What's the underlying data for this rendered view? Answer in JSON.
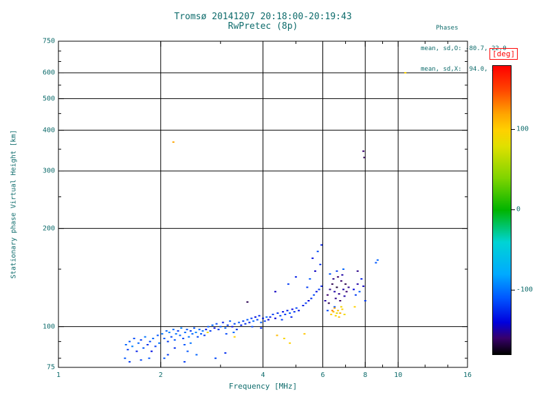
{
  "title": {
    "line1": "Tromsø 20141207 20:18:00-20:19:43",
    "line2": "RwPretec (8p)"
  },
  "stats": {
    "header": "Phases",
    "line_o": "mean, sd,O: -80.7, 22.0",
    "line_x": "mean, sd,X:  94.0, 24.9"
  },
  "colors": {
    "text": "#0d6b6b",
    "grid": "#000000",
    "deg_label": "#ff0000",
    "background": "#ffffff"
  },
  "chart_data": {
    "type": "scatter",
    "title": "Tromsø 20141207 20:18:00-20:19:43 / RwPretec (8p)",
    "xlabel": "Frequency [MHz]",
    "ylabel": "Stationary phase Virtual Height [km]",
    "x_scale": "log",
    "y_scale": "log",
    "xlim": [
      1,
      16
    ],
    "ylim": [
      75,
      750
    ],
    "x_ticks": [
      1,
      2,
      4,
      6,
      8,
      10,
      16
    ],
    "y_ticks": [
      75,
      100,
      200,
      300,
      400,
      500,
      600,
      750
    ],
    "x_minor_ticks": [
      3,
      5,
      7,
      9,
      12,
      14
    ],
    "y_minor_ticks": [
      80,
      90,
      150,
      250,
      350,
      450,
      550,
      650,
      700
    ],
    "x_gridlines": [
      2,
      4,
      6,
      8,
      10
    ],
    "y_gridlines": [
      100,
      200,
      300,
      400,
      500,
      600
    ],
    "grid": true,
    "colorbar": {
      "label": "[deg]",
      "ticks": [
        100,
        0,
        -100
      ],
      "range": [
        -180,
        180
      ],
      "stops": [
        [
          -180,
          "#000000"
        ],
        [
          -160,
          "#38006b"
        ],
        [
          -140,
          "#0000dd"
        ],
        [
          -110,
          "#0055ff"
        ],
        [
          -80,
          "#00aaff"
        ],
        [
          -40,
          "#00d4d4"
        ],
        [
          0,
          "#00b400"
        ],
        [
          40,
          "#7fd400"
        ],
        [
          80,
          "#e0e000"
        ],
        [
          100,
          "#ffd000"
        ],
        [
          120,
          "#ffa500"
        ],
        [
          150,
          "#ff4500"
        ],
        [
          180,
          "#ff0000"
        ]
      ]
    },
    "points_format": [
      "freq_MHz",
      "height_km",
      "phase_deg"
    ],
    "points": [
      [
        1.57,
        80,
        -110
      ],
      [
        1.58,
        88,
        -105
      ],
      [
        1.6,
        85,
        -120
      ],
      [
        1.62,
        78,
        -120
      ],
      [
        1.62,
        90,
        -110
      ],
      [
        1.65,
        87,
        -95
      ],
      [
        1.67,
        92,
        -115
      ],
      [
        1.7,
        84,
        -130
      ],
      [
        1.72,
        89,
        -105
      ],
      [
        1.75,
        91,
        -120
      ],
      [
        1.75,
        79,
        -115
      ],
      [
        1.78,
        86,
        -110
      ],
      [
        1.8,
        93,
        -100
      ],
      [
        1.83,
        88,
        -125
      ],
      [
        1.85,
        80,
        -110
      ],
      [
        1.86,
        90,
        -115
      ],
      [
        1.88,
        84,
        -135
      ],
      [
        1.9,
        92,
        -105
      ],
      [
        1.93,
        87,
        -120
      ],
      [
        1.96,
        94,
        -110
      ],
      [
        1.98,
        89,
        -100
      ],
      [
        2.02,
        95,
        -100
      ],
      [
        2.05,
        80,
        -110
      ],
      [
        2.05,
        92,
        -110
      ],
      [
        2.08,
        97,
        -105
      ],
      [
        2.1,
        90,
        -120
      ],
      [
        2.1,
        82,
        -120
      ],
      [
        2.12,
        96,
        -95
      ],
      [
        2.15,
        93,
        -115
      ],
      [
        2.18,
        98,
        -105
      ],
      [
        2.2,
        91,
        -110
      ],
      [
        2.2,
        86,
        -125
      ],
      [
        2.22,
        95,
        -100
      ],
      [
        2.25,
        97,
        -120
      ],
      [
        2.28,
        94,
        -105
      ],
      [
        2.3,
        99,
        -95
      ],
      [
        2.33,
        92,
        -115
      ],
      [
        2.35,
        78,
        -120
      ],
      [
        2.35,
        88,
        -110
      ],
      [
        2.36,
        96,
        -105
      ],
      [
        2.39,
        98,
        -110
      ],
      [
        2.4,
        84,
        -110
      ],
      [
        2.42,
        93,
        -100
      ],
      [
        2.45,
        97,
        -120
      ],
      [
        2.45,
        89,
        -100
      ],
      [
        2.48,
        95,
        -105
      ],
      [
        2.51,
        99,
        -110
      ],
      [
        2.54,
        96,
        -95
      ],
      [
        2.55,
        82,
        -105
      ],
      [
        2.57,
        93,
        -115
      ],
      [
        2.6,
        98,
        -105
      ],
      [
        2.63,
        95,
        -110
      ],
      [
        2.66,
        97,
        -100
      ],
      [
        2.69,
        94,
        -120
      ],
      [
        2.75,
        96,
        90
      ],
      [
        3.3,
        93,
        100
      ],
      [
        4.4,
        94,
        110
      ],
      [
        4.62,
        92,
        95
      ],
      [
        4.8,
        89,
        100
      ],
      [
        5.3,
        95,
        105
      ],
      [
        2.72,
        98,
        -130
      ],
      [
        2.76,
        100,
        -110
      ],
      [
        2.8,
        97,
        -120
      ],
      [
        2.84,
        101,
        -105
      ],
      [
        2.88,
        99,
        -135
      ],
      [
        2.9,
        80,
        -115
      ],
      [
        2.92,
        102,
        -115
      ],
      [
        2.96,
        98,
        -125
      ],
      [
        3.0,
        100,
        -110
      ],
      [
        3.05,
        103,
        -130
      ],
      [
        3.1,
        99,
        -105
      ],
      [
        3.1,
        83,
        -125
      ],
      [
        3.12,
        95,
        -115
      ],
      [
        3.15,
        101,
        -120
      ],
      [
        3.2,
        104,
        -110
      ],
      [
        3.25,
        100,
        -135
      ],
      [
        3.28,
        96,
        -105
      ],
      [
        3.3,
        102,
        -115
      ],
      [
        3.35,
        98,
        -125
      ],
      [
        3.4,
        103,
        -110
      ],
      [
        3.45,
        101,
        -130
      ],
      [
        3.5,
        104,
        -120
      ],
      [
        3.55,
        102,
        -125
      ],
      [
        3.6,
        105,
        -110
      ],
      [
        3.6,
        119,
        -165
      ],
      [
        3.65,
        103,
        -130
      ],
      [
        3.7,
        106,
        -120
      ],
      [
        3.72,
        100,
        -115
      ],
      [
        3.75,
        104,
        -105
      ],
      [
        3.8,
        107,
        -135
      ],
      [
        3.85,
        105,
        -115
      ],
      [
        3.9,
        108,
        -125
      ],
      [
        3.95,
        103,
        -110
      ],
      [
        3.95,
        99,
        -125
      ],
      [
        4.0,
        106,
        -130
      ],
      [
        4.05,
        104,
        -120
      ],
      [
        4.1,
        107,
        -105
      ],
      [
        4.15,
        105,
        -140
      ],
      [
        4.2,
        107,
        -130
      ],
      [
        4.28,
        109,
        -120
      ],
      [
        4.35,
        106,
        -140
      ],
      [
        4.35,
        128,
        -145
      ],
      [
        4.42,
        110,
        -125
      ],
      [
        4.5,
        108,
        -115
      ],
      [
        4.55,
        105,
        -120
      ],
      [
        4.58,
        111,
        -135
      ],
      [
        4.65,
        109,
        -120
      ],
      [
        4.72,
        112,
        -130
      ],
      [
        4.75,
        135,
        -120
      ],
      [
        4.8,
        110,
        -110
      ],
      [
        4.85,
        107,
        -130
      ],
      [
        4.88,
        113,
        -140
      ],
      [
        4.95,
        111,
        -125
      ],
      [
        5.0,
        142,
        -130
      ],
      [
        5.02,
        114,
        -115
      ],
      [
        5.1,
        112,
        -135
      ],
      [
        5.25,
        116,
        -130
      ],
      [
        5.35,
        118,
        -120
      ],
      [
        5.4,
        132,
        -120
      ],
      [
        5.45,
        120,
        -140
      ],
      [
        5.5,
        140,
        -110
      ],
      [
        5.55,
        122,
        -125
      ],
      [
        5.6,
        162,
        -135
      ],
      [
        5.65,
        125,
        -115
      ],
      [
        5.7,
        148,
        -145
      ],
      [
        5.75,
        128,
        -135
      ],
      [
        5.8,
        170,
        -115
      ],
      [
        5.85,
        130,
        -120
      ],
      [
        5.9,
        155,
        -125
      ],
      [
        5.95,
        133,
        -130
      ],
      [
        5.95,
        178,
        -130
      ],
      [
        6.1,
        120,
        -150
      ],
      [
        6.2,
        125,
        -160
      ],
      [
        6.25,
        118,
        -165
      ],
      [
        6.3,
        130,
        -155
      ],
      [
        6.4,
        135,
        -165
      ],
      [
        6.45,
        140,
        -155
      ],
      [
        6.5,
        128,
        -150
      ],
      [
        6.55,
        122,
        -155
      ],
      [
        6.6,
        132,
        -170
      ],
      [
        6.65,
        142,
        -160
      ],
      [
        6.7,
        126,
        -155
      ],
      [
        6.75,
        120,
        -160
      ],
      [
        6.8,
        138,
        -160
      ],
      [
        6.85,
        144,
        -150
      ],
      [
        6.9,
        130,
        -150
      ],
      [
        6.95,
        124,
        -150
      ],
      [
        7.0,
        135,
        -165
      ],
      [
        7.05,
        128,
        -160
      ],
      [
        7.15,
        132,
        -155
      ],
      [
        6.2,
        112,
        -115
      ],
      [
        6.3,
        145,
        -110
      ],
      [
        6.5,
        115,
        -110
      ],
      [
        6.6,
        148,
        -120
      ],
      [
        6.9,
        150,
        -105
      ],
      [
        6.35,
        109,
        100
      ],
      [
        6.4,
        112,
        130
      ],
      [
        6.45,
        111,
        110
      ],
      [
        6.5,
        114,
        120
      ],
      [
        6.55,
        108,
        95
      ],
      [
        6.6,
        110,
        85
      ],
      [
        6.65,
        112,
        105
      ],
      [
        6.7,
        107,
        105
      ],
      [
        6.75,
        110,
        115
      ],
      [
        6.8,
        115,
        95
      ],
      [
        6.85,
        113,
        100
      ],
      [
        6.95,
        109,
        90
      ],
      [
        7.4,
        130,
        -140
      ],
      [
        7.45,
        115,
        100
      ],
      [
        7.5,
        125,
        -120
      ],
      [
        7.6,
        135,
        -150
      ],
      [
        7.6,
        148,
        -155
      ],
      [
        7.7,
        128,
        -110
      ],
      [
        7.8,
        140,
        -130
      ],
      [
        7.9,
        133,
        -145
      ],
      [
        8.0,
        120,
        -120
      ],
      [
        2.18,
        368,
        120
      ],
      [
        7.9,
        345,
        -160
      ],
      [
        7.95,
        330,
        -165
      ],
      [
        10.5,
        600,
        100
      ],
      [
        8.6,
        157,
        -110
      ],
      [
        8.7,
        160,
        -105
      ]
    ]
  }
}
